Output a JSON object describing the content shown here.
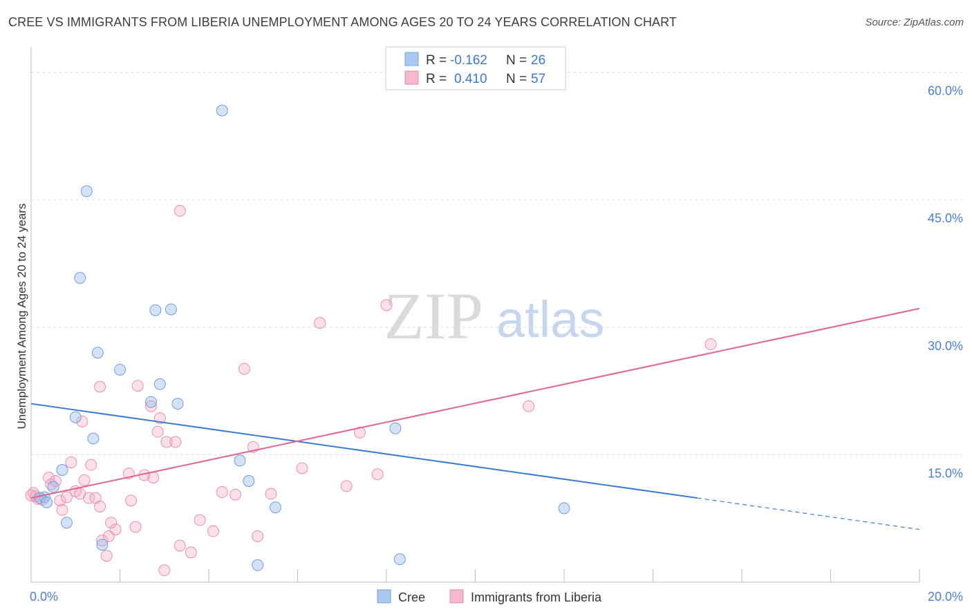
{
  "header": {
    "title": "CREE VS IMMIGRANTS FROM LIBERIA UNEMPLOYMENT AMONG AGES 20 TO 24 YEARS CORRELATION CHART",
    "source": "Source: ZipAtlas.com"
  },
  "watermark": {
    "zip": "ZIP",
    "atlas": "atlas"
  },
  "stats_box": {
    "rows": [
      {
        "r_label": "R =",
        "r_value": "-0.162",
        "n_label": "N =",
        "n_value": "26",
        "color": "#aac8f0"
      },
      {
        "r_label": "R =",
        "r_value": "0.410",
        "n_label": "N =",
        "n_value": "57",
        "color": "#f6b8cb"
      }
    ]
  },
  "chart_data": {
    "type": "scatter",
    "title": "CREE VS IMMIGRANTS FROM LIBERIA UNEMPLOYMENT AMONG AGES 20 TO 24 YEARS CORRELATION CHART",
    "xlabel": "",
    "ylabel": "Unemployment Among Ages 20 to 24 years",
    "xlim": [
      0,
      20
    ],
    "ylim": [
      0,
      62
    ],
    "x_tick_labels": [
      {
        "value": 0,
        "label": "0.0%"
      },
      {
        "value": 20,
        "label": "20.0%"
      }
    ],
    "y_tick_labels": [
      {
        "value": 15,
        "label": "15.0%"
      },
      {
        "value": 30,
        "label": "30.0%"
      },
      {
        "value": 45,
        "label": "45.0%"
      },
      {
        "value": 60,
        "label": "60.0%"
      }
    ],
    "grid": true,
    "legend_position": "bottom-center",
    "series": [
      {
        "name": "Cree",
        "color": "#9dbfee",
        "line_color": "#3a7bd5",
        "trend": {
          "x0": 0,
          "y0": 21.0,
          "x1": 15.0,
          "y1": 9.9,
          "dash_to_x": 20,
          "dash_to_y": 6.2
        },
        "points": [
          [
            4.3,
            55.5
          ],
          [
            1.25,
            46.0
          ],
          [
            1.1,
            35.8
          ],
          [
            2.8,
            32.0
          ],
          [
            3.15,
            32.1
          ],
          [
            1.5,
            27.0
          ],
          [
            2.0,
            25.0
          ],
          [
            2.9,
            23.3
          ],
          [
            2.7,
            21.2
          ],
          [
            3.3,
            21.0
          ],
          [
            1.0,
            19.4
          ],
          [
            1.4,
            16.9
          ],
          [
            8.2,
            18.1
          ],
          [
            4.7,
            14.3
          ],
          [
            0.7,
            13.2
          ],
          [
            0.5,
            11.2
          ],
          [
            4.9,
            11.9
          ],
          [
            0.3,
            10.0
          ],
          [
            0.2,
            9.9
          ],
          [
            0.35,
            9.4
          ],
          [
            0.8,
            7.0
          ],
          [
            5.5,
            8.8
          ],
          [
            12.0,
            8.7
          ],
          [
            1.6,
            4.4
          ],
          [
            5.1,
            2.0
          ],
          [
            8.3,
            2.7
          ]
        ]
      },
      {
        "name": "Immigrants from Liberia",
        "color": "#f4a7bf",
        "line_color": "#e0648f",
        "trend": {
          "x0": 0,
          "y0": 9.9,
          "x1": 20,
          "y1": 32.2
        },
        "points": [
          [
            0.05,
            10.5
          ],
          [
            0.1,
            10.1
          ],
          [
            0.15,
            9.8
          ],
          [
            0.25,
            9.7
          ],
          [
            0.4,
            12.3
          ],
          [
            0.45,
            11.5
          ],
          [
            0.55,
            11.9
          ],
          [
            0.65,
            9.6
          ],
          [
            0.7,
            8.5
          ],
          [
            0.8,
            10.0
          ],
          [
            0.9,
            14.1
          ],
          [
            1.0,
            10.7
          ],
          [
            1.1,
            10.4
          ],
          [
            1.15,
            18.9
          ],
          [
            1.2,
            12.0
          ],
          [
            1.3,
            9.9
          ],
          [
            1.35,
            13.8
          ],
          [
            1.45,
            9.9
          ],
          [
            1.55,
            8.9
          ],
          [
            1.6,
            4.9
          ],
          [
            1.7,
            3.1
          ],
          [
            1.75,
            5.4
          ],
          [
            1.8,
            7.0
          ],
          [
            1.9,
            6.2
          ],
          [
            1.55,
            23.0
          ],
          [
            2.2,
            12.8
          ],
          [
            2.25,
            9.6
          ],
          [
            2.35,
            6.5
          ],
          [
            2.4,
            23.1
          ],
          [
            2.55,
            12.6
          ],
          [
            2.7,
            20.7
          ],
          [
            2.75,
            12.3
          ],
          [
            2.85,
            17.7
          ],
          [
            2.9,
            19.3
          ],
          [
            3.0,
            1.4
          ],
          [
            3.05,
            16.5
          ],
          [
            3.25,
            16.5
          ],
          [
            3.35,
            4.3
          ],
          [
            3.6,
            3.5
          ],
          [
            3.35,
            43.7
          ],
          [
            3.8,
            7.3
          ],
          [
            4.1,
            6.0
          ],
          [
            4.3,
            10.6
          ],
          [
            4.6,
            10.3
          ],
          [
            4.8,
            25.1
          ],
          [
            5.0,
            15.9
          ],
          [
            5.1,
            5.4
          ],
          [
            5.4,
            10.4
          ],
          [
            6.1,
            13.4
          ],
          [
            6.5,
            30.5
          ],
          [
            7.1,
            11.3
          ],
          [
            7.4,
            17.6
          ],
          [
            7.8,
            12.7
          ],
          [
            8.0,
            32.6
          ],
          [
            11.2,
            20.7
          ],
          [
            15.3,
            28.0
          ],
          [
            0.0,
            10.2
          ]
        ]
      }
    ]
  },
  "legend": {
    "items": [
      {
        "label": "Cree",
        "color": "#aac8f0"
      },
      {
        "label": "Immigrants from Liberia",
        "color": "#f6b8cb"
      }
    ]
  }
}
